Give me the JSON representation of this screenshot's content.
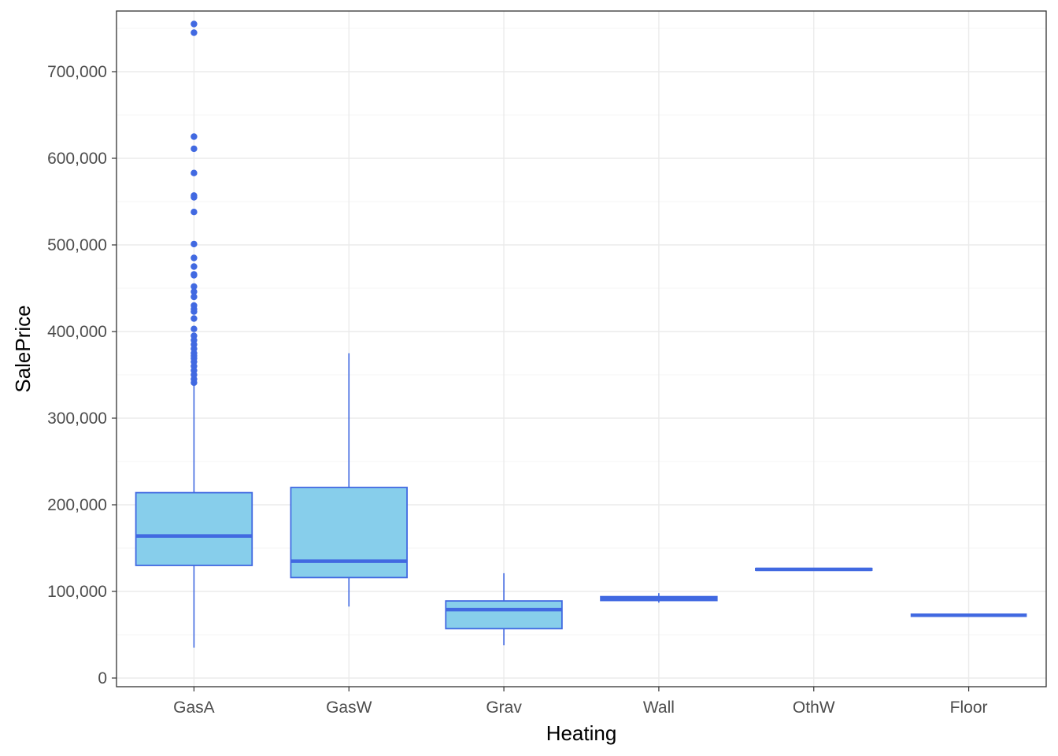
{
  "chart_data": {
    "type": "box",
    "title": "",
    "xlabel": "Heating",
    "ylabel": "SalePrice",
    "ylim": [
      0,
      770000
    ],
    "yticks": [
      0,
      100000,
      200000,
      300000,
      400000,
      500000,
      600000,
      700000
    ],
    "ytick_labels": [
      "0",
      "100,000",
      "200,000",
      "300,000",
      "400,000",
      "500,000",
      "600,000",
      "700,000"
    ],
    "grid": true,
    "fill_color": "#87CEEB",
    "line_color": "#4169E1",
    "categories": [
      "GasA",
      "GasW",
      "Grav",
      "Wall",
      "OthW",
      "Floor"
    ],
    "boxes": [
      {
        "category": "GasA",
        "whisker_low": 35000,
        "q1": 130000,
        "median": 164000,
        "q3": 214000,
        "whisker_high": 340000,
        "outliers": [
          755000,
          745000,
          625000,
          611000,
          583000,
          557000,
          555000,
          538000,
          501000,
          485000,
          475000,
          466000,
          465000,
          452000,
          446000,
          440000,
          430000,
          426000,
          423000,
          415000,
          403000,
          395000,
          390000,
          385000,
          380000,
          375000,
          372000,
          369000,
          365000,
          360000,
          355000,
          350000,
          345000,
          341000
        ]
      },
      {
        "category": "GasW",
        "whisker_low": 82500,
        "q1": 116000,
        "median": 134900,
        "q3": 220000,
        "whisker_high": 375000,
        "outliers": []
      },
      {
        "category": "Grav",
        "whisker_low": 37900,
        "q1": 57000,
        "median": 79000,
        "q3": 89000,
        "whisker_high": 121000,
        "outliers": []
      },
      {
        "category": "Wall",
        "whisker_low": 87000,
        "q1": 89500,
        "median": 91500,
        "q3": 94000,
        "whisker_high": 98000,
        "outliers": []
      },
      {
        "category": "OthW",
        "whisker_low": 124000,
        "q1": 124500,
        "median": 125500,
        "q3": 126500,
        "whisker_high": 127000,
        "outliers": []
      },
      {
        "category": "Floor",
        "whisker_low": 72500,
        "q1": 72500,
        "median": 72500,
        "q3": 72500,
        "whisker_high": 72500,
        "outliers": []
      }
    ]
  }
}
